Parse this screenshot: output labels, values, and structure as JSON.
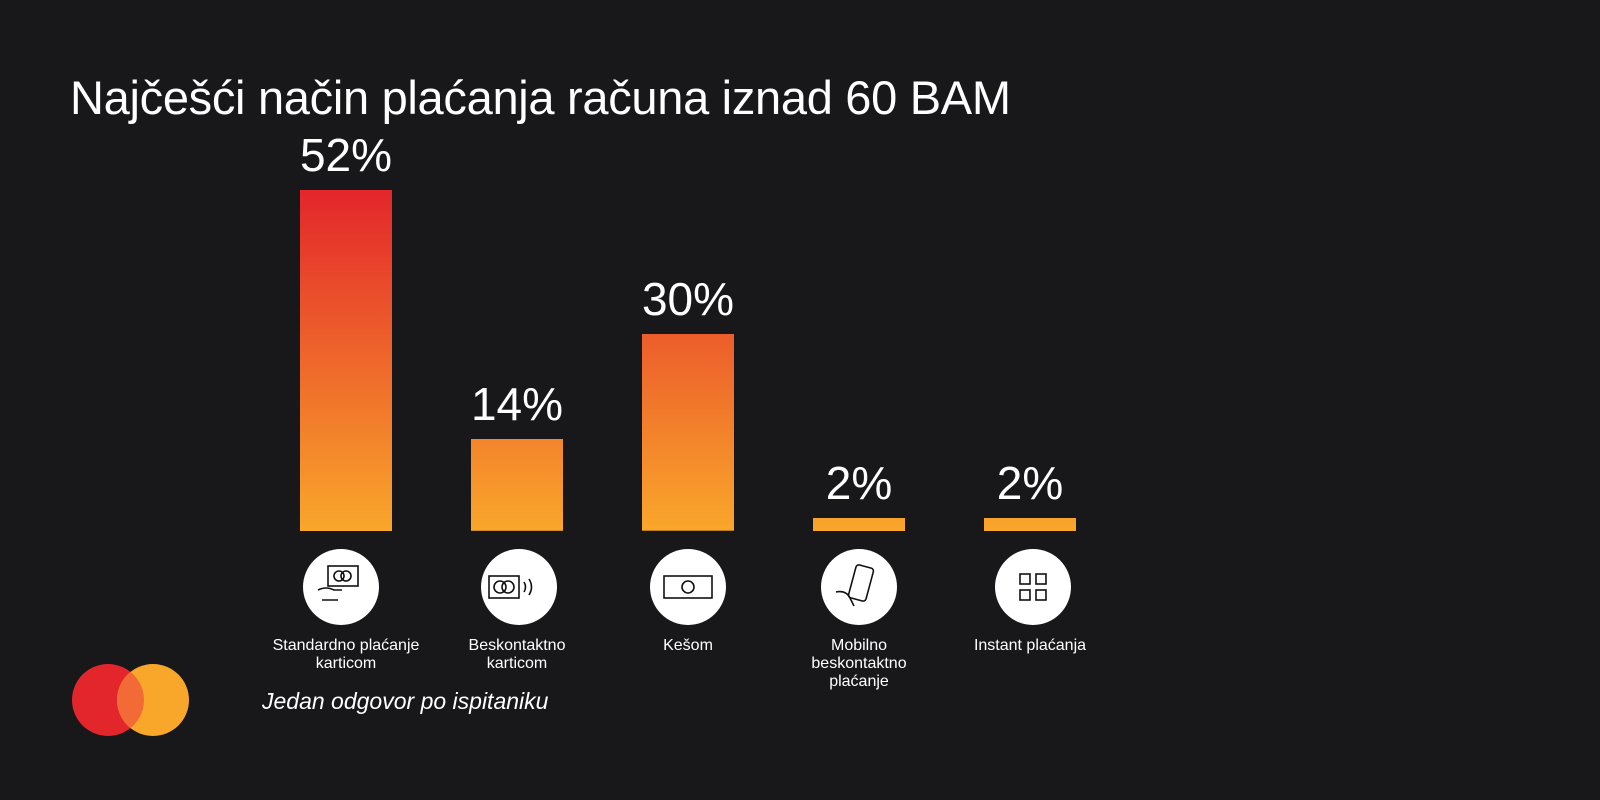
{
  "chart_data": {
    "type": "bar",
    "title": "Najčešći način plaćanja računa iznad 60 BAM",
    "categories": [
      "Standardno plaćanje karticom",
      "Beskontaktno karticom",
      "Kešom",
      "Mobilno beskontaktno plaćanje",
      "Instant plaćanja"
    ],
    "values": [
      52,
      14,
      30,
      2,
      2
    ],
    "value_labels": [
      "52%",
      "14%",
      "30%",
      "2%",
      "2%"
    ],
    "gradient": [
      "#e3262b",
      "#f9a72b"
    ],
    "note": "Jedan odgovor po ispitaniku"
  }
}
